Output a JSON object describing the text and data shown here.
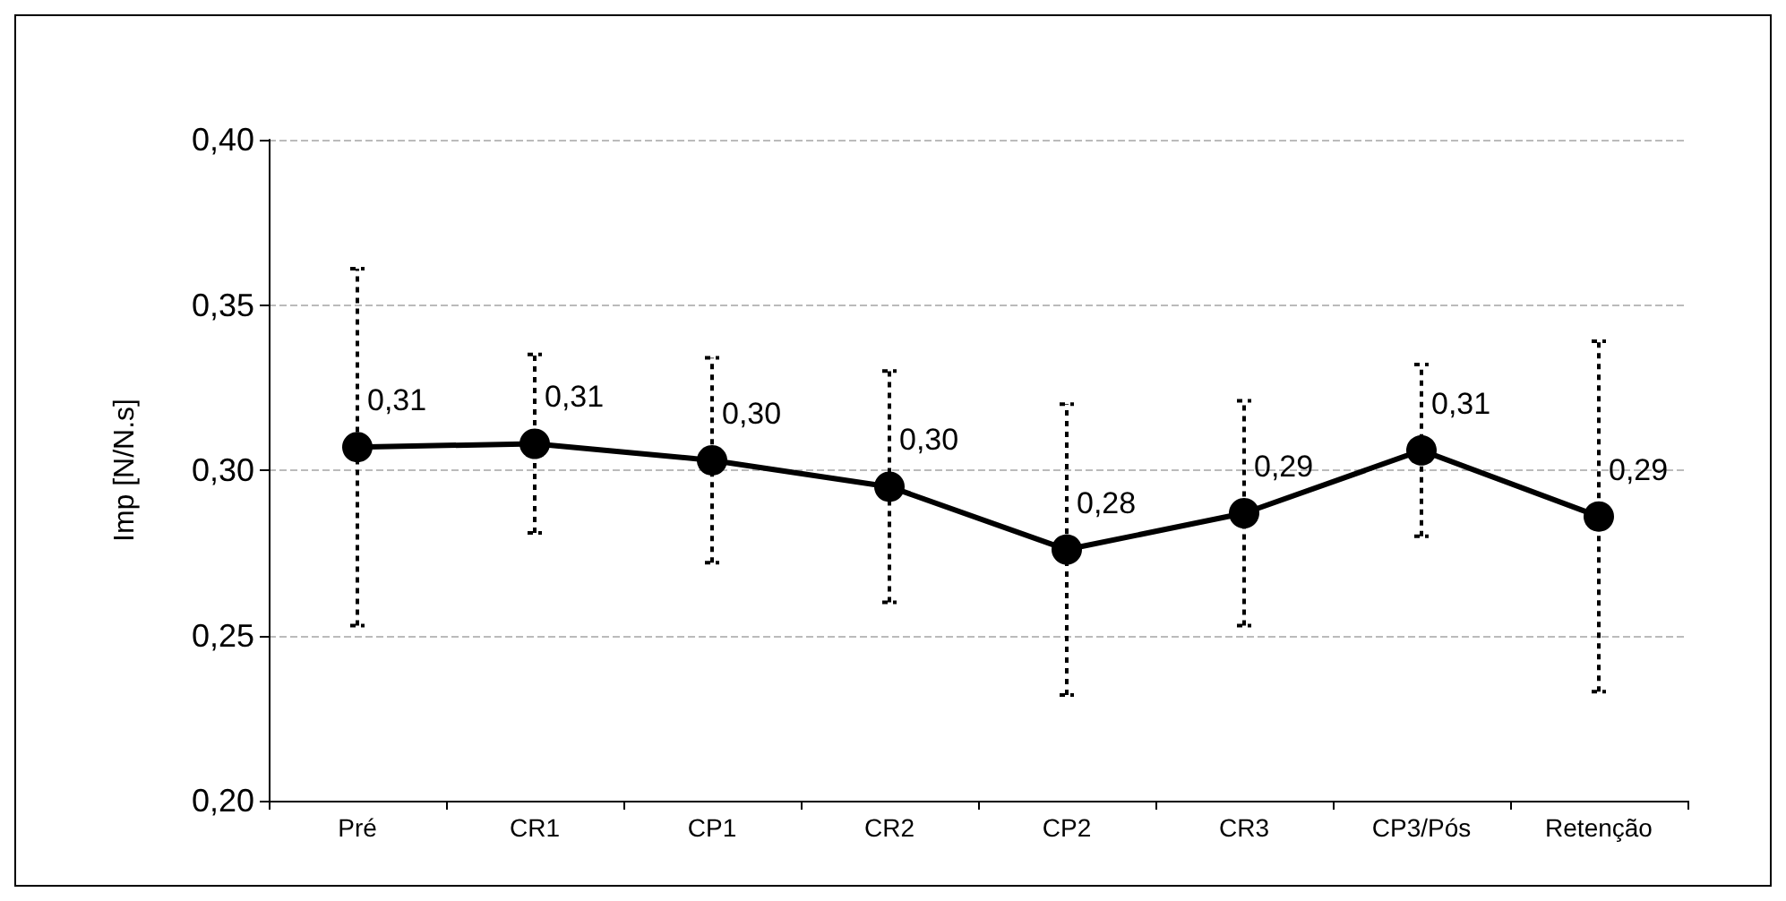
{
  "chart_data": {
    "type": "line",
    "ylabel": "Imp [N/N.s]",
    "categories": [
      "Pré",
      "CR1",
      "CP1",
      "CR2",
      "CP2",
      "CR3",
      "CP3/Pós",
      "Retenção"
    ],
    "values": [
      0.307,
      0.308,
      0.303,
      0.295,
      0.276,
      0.287,
      0.306,
      0.286
    ],
    "errors": [
      0.054,
      0.027,
      0.031,
      0.035,
      0.044,
      0.034,
      0.026,
      0.053
    ],
    "value_labels": [
      "0,31",
      "0,31",
      "0,30",
      "0,30",
      "0,28",
      "0,29",
      "0,31",
      "0,29"
    ],
    "color": "#000000",
    "ylim": [
      0.2,
      0.4
    ],
    "yticks": [
      {
        "value": 0.2,
        "label": "0,20"
      },
      {
        "value": 0.25,
        "label": "0,25"
      },
      {
        "value": 0.3,
        "label": "0,30"
      },
      {
        "value": 0.35,
        "label": "0,35"
      },
      {
        "value": 0.4,
        "label": "0,40"
      }
    ],
    "grid": "y",
    "marker": "circle",
    "line_style": "solid"
  }
}
